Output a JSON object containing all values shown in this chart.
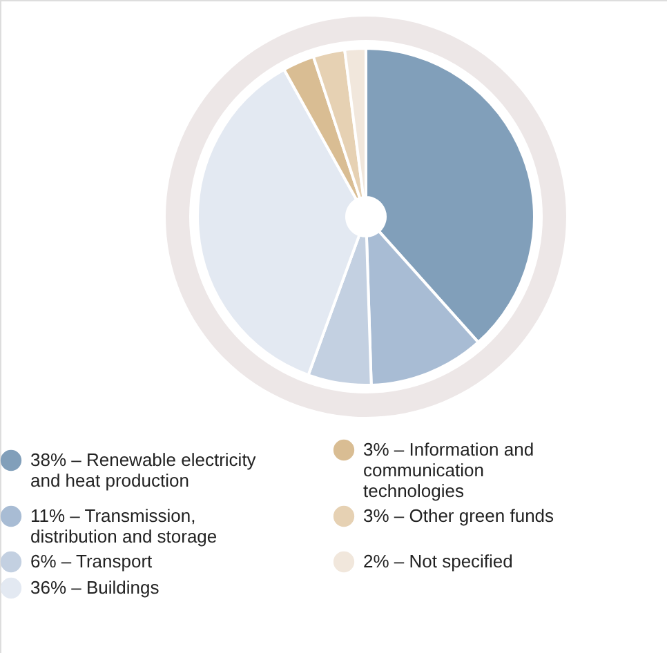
{
  "chart_data": {
    "type": "pie",
    "categories": [
      "38% – Renewable electricity and heat production",
      "11% – Transmission, distribution and storage",
      "6% – Transport",
      "36% – Buildings",
      "3% – Information and communication technologies",
      "3% – Other green funds",
      "2% – Not specified"
    ],
    "values": [
      38,
      11,
      6,
      36,
      3,
      3,
      2
    ],
    "colors": [
      "#819fba",
      "#a8bcd4",
      "#c3d0e1",
      "#e3e9f2",
      "#d9bd93",
      "#e6d1b3",
      "#f1e7dc"
    ],
    "legend": "bottom"
  }
}
